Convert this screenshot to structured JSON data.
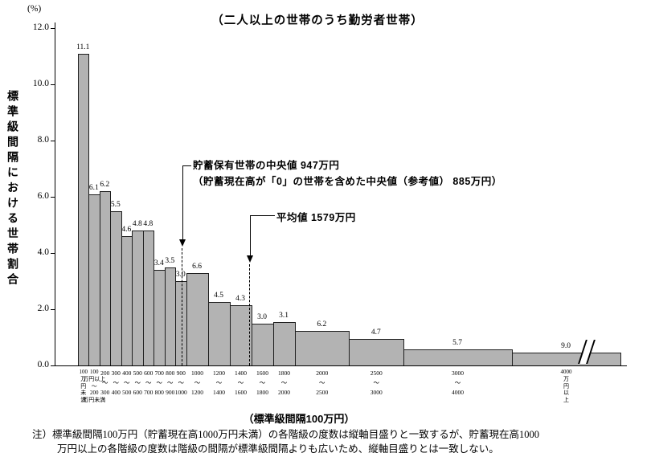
{
  "chart_data": {
    "type": "bar",
    "title": "（二人以上の世帯のうち勤労者世帯）",
    "ylabel": "標準級間隔における世帯割合",
    "y_unit_label": "(%)",
    "xlabel": "（標準級間隔100万円）",
    "ylim": [
      0,
      12
    ],
    "ytick_labels": [
      "0.0",
      "2.0",
      "4.0",
      "6.0",
      "8.0",
      "10.0",
      "12.0"
    ],
    "unit_note": "貯蓄現在高（万円）",
    "bars": [
      {
        "range": "100万円未満",
        "label_lines": [
          "100",
          "万",
          "円",
          "未",
          "満"
        ],
        "value": 11.1,
        "units": 1
      },
      {
        "range": "100〜200万円",
        "label_lines": [
          "100",
          "万円以上",
          "〜",
          "200",
          "万円未満"
        ],
        "value": 6.1,
        "units": 1
      },
      {
        "range": "200〜300万円",
        "label_lines": [
          "200",
          "〜",
          "300"
        ],
        "value": 6.2,
        "units": 1
      },
      {
        "range": "300〜400万円",
        "label_lines": [
          "300",
          "〜",
          "400"
        ],
        "value": 5.5,
        "units": 1
      },
      {
        "range": "400〜500万円",
        "label_lines": [
          "400",
          "〜",
          "500"
        ],
        "value": 4.6,
        "units": 1
      },
      {
        "range": "500〜600万円",
        "label_lines": [
          "500",
          "〜",
          "600"
        ],
        "value": 4.8,
        "units": 1
      },
      {
        "range": "600〜700万円",
        "label_lines": [
          "600",
          "〜",
          "700"
        ],
        "value": 4.8,
        "units": 1
      },
      {
        "range": "700〜800万円",
        "label_lines": [
          "700",
          "〜",
          "800"
        ],
        "value": 3.4,
        "units": 1
      },
      {
        "range": "800〜900万円",
        "label_lines": [
          "800",
          "〜",
          "900"
        ],
        "value": 3.5,
        "units": 1
      },
      {
        "range": "900〜1000万円",
        "label_lines": [
          "900",
          "〜",
          "1000"
        ],
        "value": 3.0,
        "units": 1
      },
      {
        "range": "1000〜1200万円",
        "label_lines": [
          "1000",
          "〜",
          "1200"
        ],
        "value": 6.6,
        "units": 2
      },
      {
        "range": "1200〜1400万円",
        "label_lines": [
          "1200",
          "〜",
          "1400"
        ],
        "value": 4.5,
        "units": 2
      },
      {
        "range": "1400〜1600万円",
        "label_lines": [
          "1400",
          "〜",
          "1600"
        ],
        "value": 4.3,
        "units": 2
      },
      {
        "range": "1600〜1800万円",
        "label_lines": [
          "1600",
          "〜",
          "1800"
        ],
        "value": 3.0,
        "units": 2
      },
      {
        "range": "1800〜2000万円",
        "label_lines": [
          "1800",
          "〜",
          "2000"
        ],
        "value": 3.1,
        "units": 2
      },
      {
        "range": "2000〜2500万円",
        "label_lines": [
          "2000",
          "〜",
          "2500"
        ],
        "value": 6.2,
        "units": 5
      },
      {
        "range": "2500〜3000万円",
        "label_lines": [
          "2500",
          "〜",
          "3000"
        ],
        "value": 4.7,
        "units": 5
      },
      {
        "range": "3000〜4000万円",
        "label_lines": [
          "3000",
          "〜",
          "4000"
        ],
        "value": 5.7,
        "units": 10
      },
      {
        "range": "4000万円以上",
        "label_lines": [
          "4000",
          "万",
          "円",
          "以",
          "上"
        ],
        "value": 9.0,
        "units": 10,
        "display": 0.45
      }
    ],
    "annotations": [
      {
        "name": "median",
        "x_value_manen": 947,
        "lines": [
          "貯蓄保有世帯の中央値 947万円",
          "（貯蓄現在高が「0」の世帯を含めた中央値（参考値） 885万円）"
        ]
      },
      {
        "name": "mean",
        "x_value_manen": 1579,
        "lines": [
          "平均値 1579万円"
        ]
      }
    ],
    "axis_break": true
  },
  "footnote": {
    "lines": [
      "注）標準級間隔100万円（貯蓄現在高1000万円未満）の各階級の度数は縦軸目盛りと一致するが、貯蓄現在高1000",
      "万円以上の各階級の度数は階級の間隔が標準級間隔よりも広いため、縦軸目盛りとは一致しない。"
    ]
  }
}
